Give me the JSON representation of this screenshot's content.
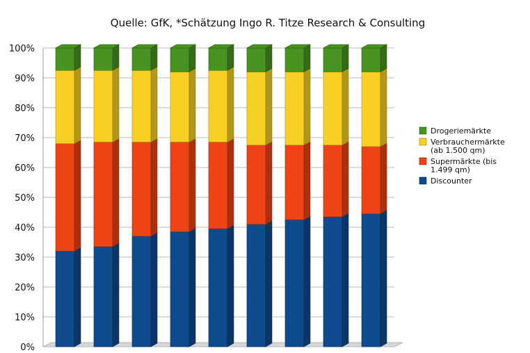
{
  "chart_data": {
    "type": "bar",
    "stacked": true,
    "title": "",
    "subtitle": "Quelle: GfK, *Schätzung Ingo R. Titze Research & Consulting",
    "xlabel": "",
    "ylabel": "",
    "ylim": [
      0,
      100
    ],
    "y_ticks": [
      "0%",
      "10%",
      "20%",
      "30%",
      "40%",
      "50%",
      "60%",
      "70%",
      "80%",
      "90%",
      "100%"
    ],
    "grid": true,
    "legend_position": "right",
    "categories": [
      "",
      "",
      "",
      "",
      "",
      "",
      "",
      "",
      ""
    ],
    "series": [
      {
        "name": "Discounter",
        "color": "#0f4a8c",
        "values": [
          32.0,
          33.5,
          37.0,
          38.5,
          39.5,
          41.0,
          42.5,
          43.5,
          44.5
        ]
      },
      {
        "name": "Supermärkte (bis 1.499 qm)",
        "color": "#ee4315",
        "values": [
          36.0,
          35.0,
          31.5,
          30.0,
          29.0,
          26.5,
          25.0,
          24.0,
          22.5
        ]
      },
      {
        "name": "Verbrauchermärkte (ab 1.500 qm)",
        "color": "#f7d023",
        "values": [
          24.5,
          24.0,
          24.0,
          23.5,
          24.0,
          24.5,
          24.5,
          24.5,
          25.0
        ]
      },
      {
        "name": "Drogeriemärkte",
        "color": "#489322",
        "values": [
          7.5,
          7.5,
          7.5,
          8.0,
          7.5,
          8.0,
          8.0,
          8.0,
          8.0
        ]
      }
    ]
  }
}
